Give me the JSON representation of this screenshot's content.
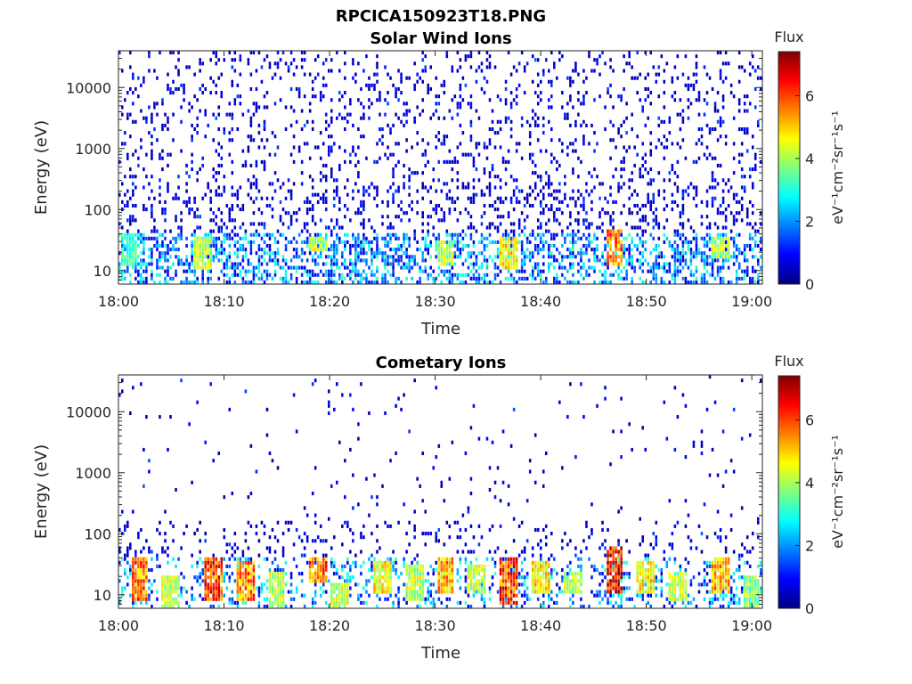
{
  "figure_title": "RPCICA150923T18.PNG",
  "chart_data": [
    {
      "type": "heatmap",
      "title": "Solar Wind Ions",
      "xlabel": "Time",
      "ylabel": "Energy (eV)",
      "y_scale": "log",
      "xlim": [
        "18:00",
        "19:01"
      ],
      "ylim": [
        6,
        40000
      ],
      "x_tick_labels": [
        "18:00",
        "18:10",
        "18:20",
        "18:30",
        "18:40",
        "18:50",
        "19:00"
      ],
      "y_tick_labels": [
        "10",
        "100",
        "1000",
        "10000"
      ],
      "colorbar": {
        "title": "Flux",
        "label": "eV⁻¹cm⁻²sr⁻¹s⁻¹",
        "range": [
          0,
          7.4
        ],
        "tick_labels": [
          "0",
          "2",
          "4",
          "6"
        ],
        "colormap": "jet"
      },
      "bright_bands": [
        {
          "time": "18:01",
          "energy_eV": [
            12,
            40
          ],
          "flux": 3.5
        },
        {
          "time": "18:08",
          "energy_eV": [
            10,
            35
          ],
          "flux": 4.5
        },
        {
          "time": "18:19",
          "energy_eV": [
            20,
            35
          ],
          "flux": 4.5
        },
        {
          "time": "18:31",
          "energy_eV": [
            12,
            30
          ],
          "flux": 4.5
        },
        {
          "time": "18:37",
          "energy_eV": [
            10,
            35
          ],
          "flux": 5
        },
        {
          "time": "18:47",
          "energy_eV": [
            12,
            45
          ],
          "flux": 6
        },
        {
          "time": "18:57",
          "energy_eV": [
            15,
            35
          ],
          "flux": 4.5
        }
      ]
    },
    {
      "type": "heatmap",
      "title": "Cometary Ions",
      "xlabel": "Time",
      "ylabel": "Energy (eV)",
      "y_scale": "log",
      "xlim": [
        "18:00",
        "19:01"
      ],
      "ylim": [
        6,
        40000
      ],
      "x_tick_labels": [
        "18:00",
        "18:10",
        "18:20",
        "18:30",
        "18:40",
        "18:50",
        "19:00"
      ],
      "y_tick_labels": [
        "10",
        "100",
        "1000",
        "10000"
      ],
      "colorbar": {
        "title": "Flux",
        "label": "eV⁻¹cm⁻²sr⁻¹s⁻¹",
        "range": [
          0,
          7.4
        ],
        "tick_labels": [
          "0",
          "2",
          "4",
          "6"
        ],
        "colormap": "jet"
      },
      "bright_bands": [
        {
          "time": "18:02",
          "energy_eV": [
            8,
            40
          ],
          "flux": 6
        },
        {
          "time": "18:05",
          "energy_eV": [
            6,
            20
          ],
          "flux": 4.5
        },
        {
          "time": "18:09",
          "energy_eV": [
            8,
            40
          ],
          "flux": 6.5
        },
        {
          "time": "18:12",
          "energy_eV": [
            8,
            35
          ],
          "flux": 6
        },
        {
          "time": "18:15",
          "energy_eV": [
            6,
            25
          ],
          "flux": 4.5
        },
        {
          "time": "18:19",
          "energy_eV": [
            15,
            40
          ],
          "flux": 6
        },
        {
          "time": "18:21",
          "energy_eV": [
            6,
            15
          ],
          "flux": 4.5
        },
        {
          "time": "18:25",
          "energy_eV": [
            10,
            35
          ],
          "flux": 5
        },
        {
          "time": "18:28",
          "energy_eV": [
            8,
            30
          ],
          "flux": 4.5
        },
        {
          "time": "18:31",
          "energy_eV": [
            10,
            40
          ],
          "flux": 5.5
        },
        {
          "time": "18:34",
          "energy_eV": [
            10,
            30
          ],
          "flux": 4.5
        },
        {
          "time": "18:37",
          "energy_eV": [
            7,
            40
          ],
          "flux": 6.5
        },
        {
          "time": "18:40",
          "energy_eV": [
            10,
            35
          ],
          "flux": 5
        },
        {
          "time": "18:43",
          "energy_eV": [
            10,
            25
          ],
          "flux": 4.5
        },
        {
          "time": "18:47",
          "energy_eV": [
            10,
            60
          ],
          "flux": 7
        },
        {
          "time": "18:50",
          "energy_eV": [
            10,
            35
          ],
          "flux": 5
        },
        {
          "time": "18:53",
          "energy_eV": [
            8,
            25
          ],
          "flux": 4.5
        },
        {
          "time": "18:57",
          "energy_eV": [
            10,
            40
          ],
          "flux": 5.5
        },
        {
          "time": "19:00",
          "energy_eV": [
            6,
            20
          ],
          "flux": 4
        }
      ]
    }
  ]
}
